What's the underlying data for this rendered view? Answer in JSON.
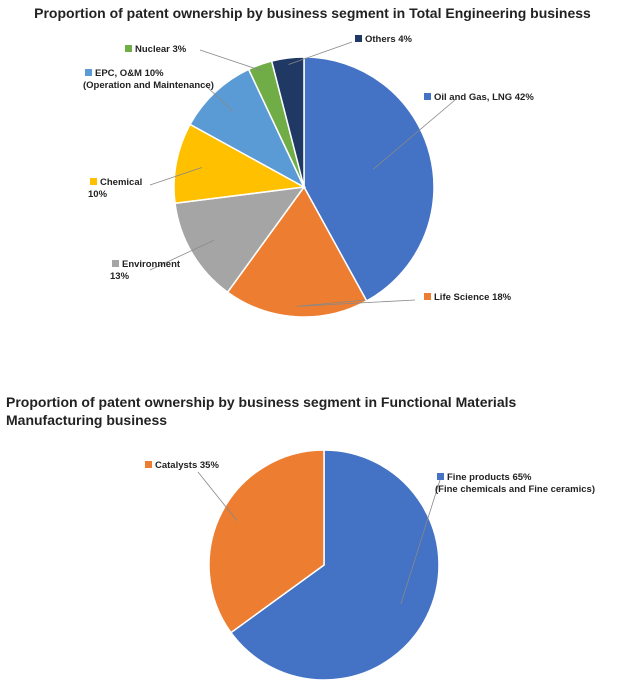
{
  "chart_data": [
    {
      "type": "pie",
      "title": "Proportion of patent ownership by business segment in Total Engineering business",
      "slices": [
        {
          "label": "Oil and Gas, LNG",
          "value": 42,
          "value_label": "42%",
          "color": "#4472C4"
        },
        {
          "label": "Life Science",
          "value": 18,
          "value_label": "18%",
          "color": "#ED7D31"
        },
        {
          "label": "Environment",
          "value": 13,
          "value_label": "13%",
          "color": "#A5A5A5"
        },
        {
          "label": "Chemical",
          "value": 10,
          "value_label": "10%",
          "color": "#FFC000"
        },
        {
          "label": "EPC, O&M",
          "sublabel": "(Operation and Maintenance)",
          "value": 10,
          "value_label": "10%",
          "color": "#5B9BD5"
        },
        {
          "label": "Nuclear",
          "value": 3,
          "value_label": "3%",
          "color": "#70AD47"
        },
        {
          "label": "Others",
          "value": 4,
          "value_label": "4%",
          "color": "#203864"
        }
      ]
    },
    {
      "type": "pie",
      "title": "Proportion of patent ownership by business segment in Functional Materials Manufacturing business",
      "slices": [
        {
          "label": "Fine products",
          "sublabel": "(Fine chemicals and Fine ceramics)",
          "value": 65,
          "value_label": "65%",
          "color": "#4472C4"
        },
        {
          "label": "Catalysts",
          "value": 35,
          "value_label": "35%",
          "color": "#ED7D31"
        }
      ]
    }
  ]
}
